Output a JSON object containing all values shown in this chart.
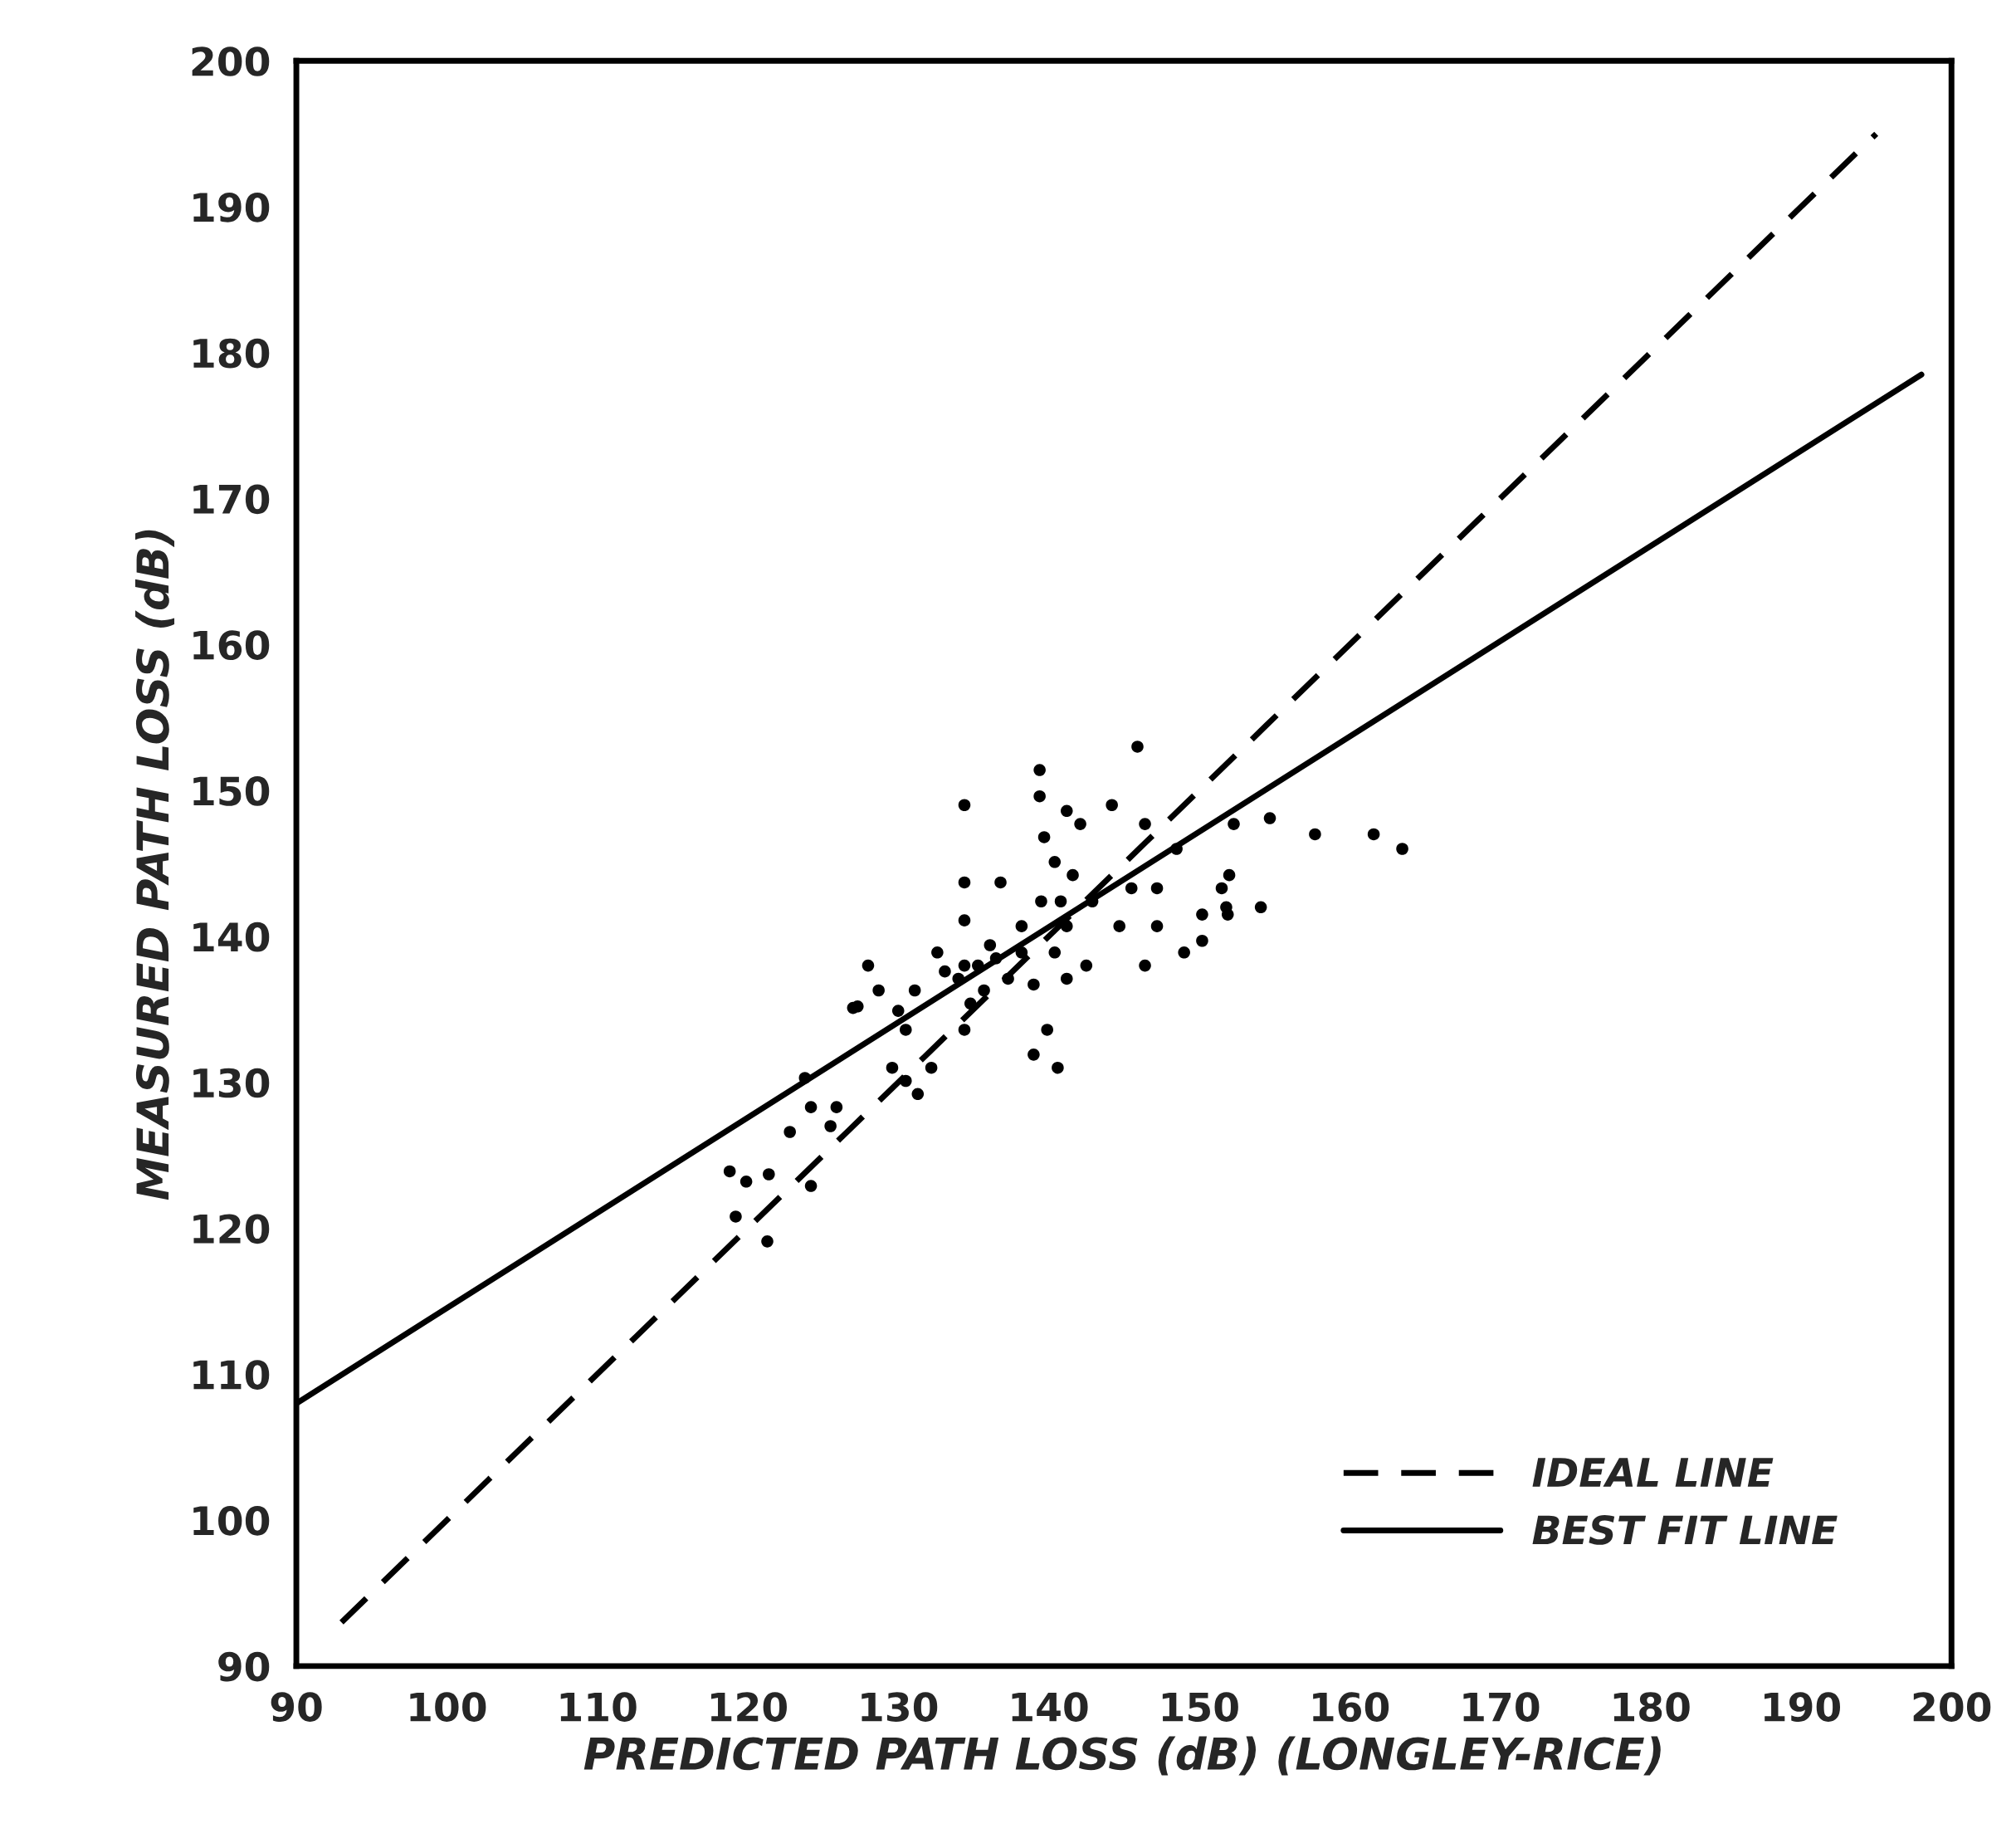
{
  "chart_data": {
    "type": "scatter",
    "xlabel": "PREDICTED PATH LOSS (dB) (LONGLEY-RICE)",
    "ylabel": "MEASURED PATH LOSS (dB)",
    "xlim": [
      90,
      200
    ],
    "ylim": [
      90,
      200
    ],
    "xticks": [
      90,
      100,
      110,
      120,
      130,
      140,
      150,
      160,
      170,
      180,
      190,
      200
    ],
    "yticks": [
      90,
      100,
      110,
      120,
      130,
      140,
      150,
      160,
      170,
      180,
      190,
      200
    ],
    "grid": false,
    "legend": "bottom right",
    "series": [
      {
        "color": "#000000",
        "marker": "circle",
        "x": [
          121.3,
          118.8,
          119.2,
          119.9,
          121.4,
          124.2,
          123.8,
          122.8,
          124.2,
          125.9,
          125.5,
          127.0,
          128.0,
          128.7,
          129.6,
          130.5,
          131.3,
          132.2,
          130.5,
          131.1,
          132.6,
          134.4,
          134.4,
          136.8,
          134.4,
          134.0,
          134.8,
          134.4,
          135.7,
          136.5,
          137.3,
          138.2,
          139.0,
          139.9,
          139.0,
          140.6,
          139.4,
          139.4,
          139.7,
          139.5,
          141.2,
          142.1,
          144.2,
          145.9,
          146.4,
          141.6,
          142.9,
          141.2,
          140.4,
          142.5,
          141.2,
          144.7,
          145.5,
          147.2,
          147.2,
          146.4,
          148.5,
          149.0,
          150.2,
          150.2,
          151.5,
          152.0,
          151.8,
          152.3,
          154.7,
          151.9,
          154.1,
          157.7,
          161.6,
          163.5,
          136.1,
          135.3,
          138.2,
          140.4,
          140.8,
          133.1,
          130.0,
          127.3,
          134.4
        ],
        "values": [
          119.1,
          123.9,
          120.8,
          123.2,
          123.7,
          122.9,
          130.3,
          126.6,
          128.3,
          128.3,
          127.0,
          135.1,
          138.0,
          136.3,
          131.0,
          130.1,
          129.2,
          131.0,
          133.6,
          136.3,
          138.9,
          149.0,
          143.7,
          143.7,
          141.1,
          137.1,
          135.4,
          133.6,
          136.3,
          138.5,
          137.1,
          138.9,
          136.7,
          133.6,
          131.9,
          131.0,
          151.4,
          149.6,
          146.8,
          142.4,
          148.6,
          147.7,
          149.0,
          153.0,
          147.7,
          144.2,
          142.4,
          140.7,
          138.9,
          138.0,
          137.1,
          140.7,
          143.3,
          143.3,
          140.7,
          138.0,
          146.0,
          138.9,
          139.7,
          141.5,
          143.3,
          144.2,
          142.0,
          147.7,
          148.1,
          141.5,
          142.0,
          147.0,
          147.0,
          146.0,
          139.4,
          138.0,
          140.7,
          145.1,
          142.4,
          137.6,
          134.9,
          135.2,
          138.0
        ]
      },
      {
        "type": "line",
        "name": "IDEAL LINE",
        "color": "#000000",
        "line_style": "dashed",
        "x": [
          93,
          195
        ],
        "values": [
          93,
          195
        ]
      },
      {
        "type": "line",
        "name": "BEST FIT LINE",
        "color": "#000000",
        "line_style": "solid",
        "x": [
          90,
          198
        ],
        "values": [
          108,
          178.5
        ]
      }
    ]
  }
}
